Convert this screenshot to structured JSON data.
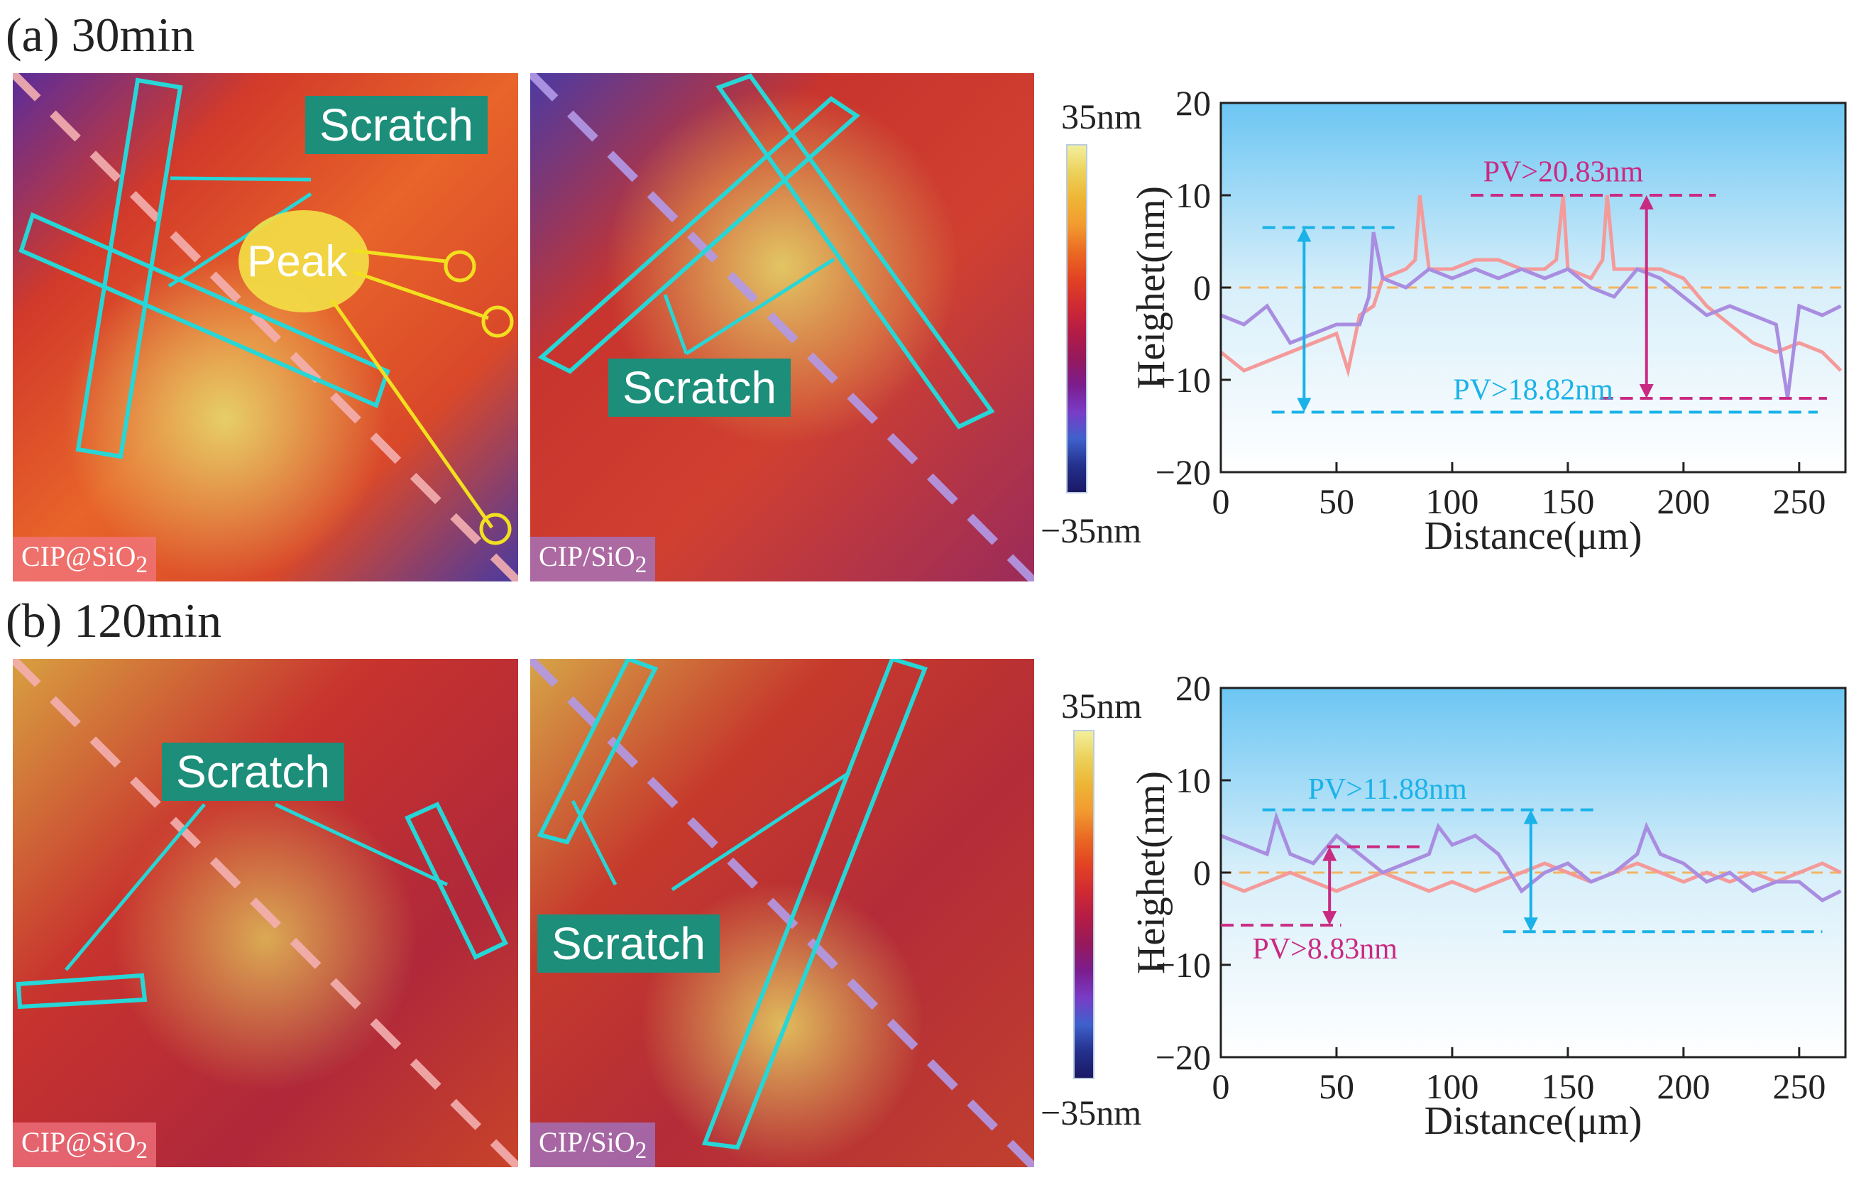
{
  "panels": {
    "a": {
      "title": "(a)  30min",
      "left_tag": "CIP@SiO",
      "right_tag": "CIP/SiO",
      "tag_sub": "2",
      "scratch_left": "Scratch",
      "scratch_right": "Scratch",
      "peak": "Peak"
    },
    "b": {
      "title": "(b)  120min",
      "left_tag": "CIP@SiO",
      "right_tag": "CIP/SiO",
      "tag_sub": "2",
      "scratch_left": "Scratch",
      "scratch_right": "Scratch"
    }
  },
  "colorbar": {
    "max_label": "35nm",
    "min_label": "−35nm",
    "colors": [
      "#f3ef9c",
      "#ecd15a",
      "#eeb535",
      "#f29a30",
      "#ea6a22",
      "#e34323",
      "#d02a33",
      "#b41c45",
      "#96195c",
      "#7b1d8e",
      "#7a3cc6",
      "#3f61cc",
      "#24318d",
      "#1a1866"
    ]
  },
  "colors": {
    "pink_line": "#f59a9a",
    "purple_line": "#a98de0",
    "cyan": "#1ab2e8",
    "magenta": "#c92a82",
    "baseline": "#f3b561",
    "box": "#27d6d6"
  },
  "chart_data": [
    {
      "type": "line",
      "title": "",
      "xlabel": "Distance(μm)",
      "ylabel": "Heighet(nm)",
      "xlim": [
        0,
        270
      ],
      "ylim": [
        -20,
        20
      ],
      "xticks": [
        0,
        50,
        100,
        150,
        200,
        250
      ],
      "yticks": [
        20,
        10,
        0,
        -10,
        -20
      ],
      "series": [
        {
          "name": "CIP@SiO2",
          "color": "#f59a9a",
          "x": [
            0,
            10,
            20,
            30,
            40,
            50,
            55,
            60,
            66,
            70,
            80,
            84,
            86,
            90,
            100,
            110,
            120,
            130,
            140,
            145,
            148,
            150,
            160,
            165,
            167,
            170,
            180,
            190,
            200,
            210,
            220,
            230,
            240,
            250,
            260,
            268
          ],
          "y": [
            -7,
            -9,
            -8,
            -7,
            -6,
            -5,
            -9,
            -3,
            -2,
            1,
            2,
            3,
            10,
            2,
            2,
            3,
            3,
            2,
            2,
            3,
            10,
            2,
            1,
            3,
            10,
            2,
            2,
            2,
            1,
            -2,
            -4,
            -6,
            -7,
            -6,
            -7,
            -9
          ]
        },
        {
          "name": "CIP/SiO2",
          "color": "#a98de0",
          "x": [
            0,
            10,
            20,
            30,
            40,
            50,
            60,
            64,
            66,
            70,
            80,
            90,
            100,
            110,
            120,
            130,
            140,
            150,
            160,
            170,
            180,
            190,
            200,
            210,
            220,
            230,
            240,
            245,
            250,
            260,
            268
          ],
          "y": [
            -3,
            -4,
            -2,
            -6,
            -5,
            -4,
            -4,
            -1,
            6,
            1,
            0,
            2,
            1,
            2,
            1,
            2,
            1,
            2,
            0,
            -1,
            2,
            1,
            -1,
            -3,
            -2,
            -3,
            -4,
            -12,
            -2,
            -3,
            -2
          ]
        }
      ],
      "baseline": 0,
      "annotations": [
        {
          "text": "PV>20.83nm",
          "value": 20.83,
          "color": "#c92a82",
          "top": 10,
          "bottom": -12
        },
        {
          "text": "PV>18.82nm",
          "value": 18.82,
          "color": "#1ab2e8",
          "top": 6.5,
          "bottom": -13.5
        }
      ]
    },
    {
      "type": "line",
      "title": "",
      "xlabel": "Distance(μm)",
      "ylabel": "Heighet(nm)",
      "xlim": [
        0,
        270
      ],
      "ylim": [
        -20,
        20
      ],
      "xticks": [
        0,
        50,
        100,
        150,
        200,
        250
      ],
      "yticks": [
        20,
        10,
        0,
        -10,
        -20
      ],
      "series": [
        {
          "name": "CIP@SiO2",
          "color": "#f59a9a",
          "x": [
            0,
            10,
            20,
            30,
            40,
            50,
            60,
            70,
            80,
            90,
            100,
            110,
            120,
            130,
            140,
            150,
            160,
            170,
            180,
            190,
            200,
            210,
            220,
            230,
            240,
            250,
            260,
            268
          ],
          "y": [
            -1,
            -2,
            -1,
            0,
            -1,
            -2,
            -1,
            0,
            -1,
            -2,
            -1,
            -2,
            -1,
            0,
            1,
            0,
            -1,
            0,
            1,
            0,
            -1,
            0,
            -1,
            0,
            -1,
            0,
            1,
            0
          ]
        },
        {
          "name": "CIP/SiO2",
          "color": "#a98de0",
          "x": [
            0,
            10,
            20,
            24,
            30,
            40,
            50,
            60,
            70,
            80,
            90,
            94,
            100,
            110,
            120,
            130,
            140,
            150,
            160,
            170,
            180,
            184,
            190,
            200,
            210,
            220,
            230,
            240,
            250,
            260,
            268
          ],
          "y": [
            4,
            3,
            2,
            6,
            2,
            1,
            4,
            2,
            0,
            1,
            2,
            5,
            3,
            4,
            2,
            -2,
            0,
            1,
            -1,
            0,
            2,
            5,
            2,
            1,
            -1,
            0,
            -2,
            -1,
            -1,
            -3,
            -2
          ]
        }
      ],
      "baseline": 0,
      "annotations": [
        {
          "text": "PV>11.88nm",
          "value": 11.88,
          "color": "#1ab2e8",
          "top": 6.8,
          "bottom": -6.4
        },
        {
          "text": "PV>8.83nm",
          "value": 8.83,
          "color": "#c92a82",
          "top": 2.8,
          "bottom": -5.7
        }
      ]
    }
  ]
}
